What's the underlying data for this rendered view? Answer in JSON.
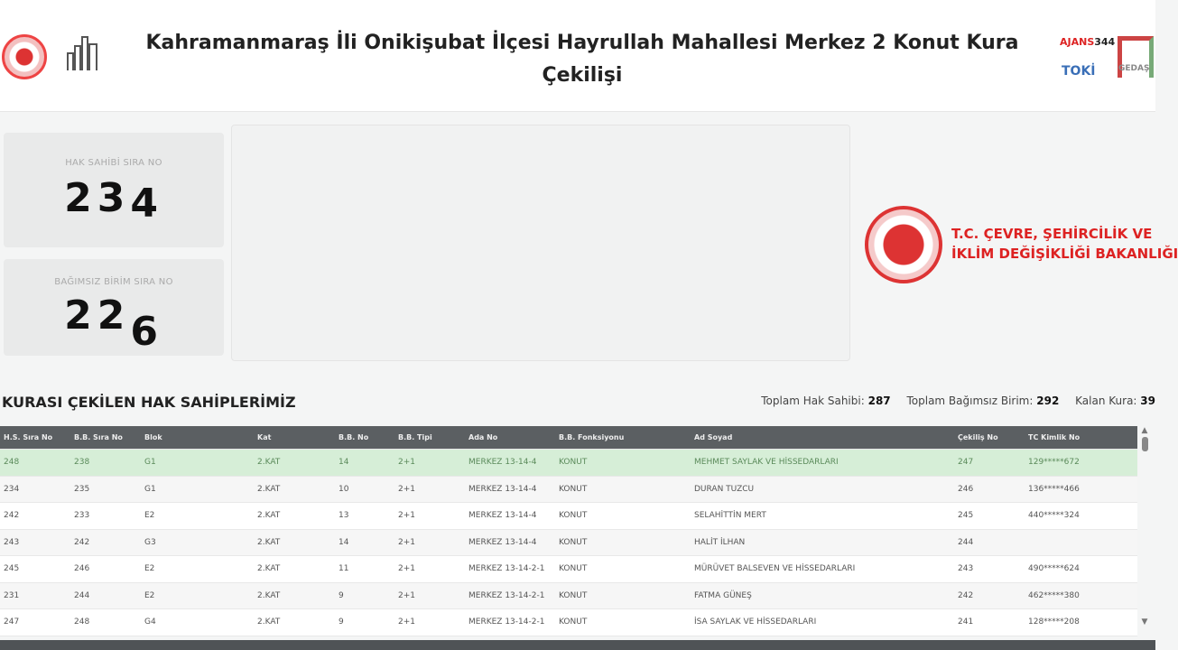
{
  "header": {
    "title": "Kahramanmaraş İli Onikişubat İlçesi Hayrullah Mahallesi Merkez 2 Konut Kura Çekilişi",
    "logos": {
      "ajans": "AJANS",
      "ajans_num": "344",
      "toki": "TOKİ",
      "gedas": "GEDAŞ"
    }
  },
  "counters": {
    "hak_sahibi": {
      "label": "HAK SAHİBİ SIRA NO",
      "digits": [
        "2",
        "3",
        "4"
      ]
    },
    "bagimsiz_birim": {
      "label": "BAĞIMSIZ BİRİM SIRA NO",
      "digits": [
        "2",
        "2",
        "6"
      ]
    }
  },
  "ministry": {
    "line1": "T.C. ÇEVRE, ŞEHİRCİLİK VE",
    "line2": "İKLİM DEĞİŞİKLİĞİ BAKANLIĞI"
  },
  "list": {
    "title": "KURASI ÇEKİLEN HAK SAHİPLERİMİZ",
    "stats": {
      "toplam_hak_sahibi_label": "Toplam Hak Sahibi:",
      "toplam_hak_sahibi": "287",
      "toplam_birim_label": "Toplam Bağımsız Birim:",
      "toplam_birim": "292",
      "kalan_kura_label": "Kalan Kura:",
      "kalan_kura": "39"
    }
  },
  "table": {
    "columns": [
      "H.S. Sıra No",
      "B.B. Sıra No",
      "Blok",
      "Kat",
      "B.B. No",
      "B.B. Tipi",
      "Ada No",
      "B.B. Fonksiyonu",
      "Ad Soyad",
      "Çekiliş No",
      "TC Kimlik No"
    ],
    "rows": [
      [
        "248",
        "238",
        "G1",
        "2.KAT",
        "14",
        "2+1",
        "MERKEZ 13-14-4",
        "KONUT",
        "MEHMET SAYLAK VE HİSSEDARLARI",
        "247",
        "129*****672"
      ],
      [
        "234",
        "235",
        "G1",
        "2.KAT",
        "10",
        "2+1",
        "MERKEZ 13-14-4",
        "KONUT",
        "DURAN TUZCU",
        "246",
        "136*****466"
      ],
      [
        "242",
        "233",
        "E2",
        "2.KAT",
        "13",
        "2+1",
        "MERKEZ 13-14-4",
        "KONUT",
        "SELAHİTTİN MERT",
        "245",
        "440*****324"
      ],
      [
        "243",
        "242",
        "G3",
        "2.KAT",
        "14",
        "2+1",
        "MERKEZ 13-14-4",
        "KONUT",
        "HALİT İLHAN",
        "244",
        ""
      ],
      [
        "245",
        "246",
        "E2",
        "2.KAT",
        "11",
        "2+1",
        "MERKEZ 13-14-2-1",
        "KONUT",
        "MÜRÜVET BALSEVEN VE HİSSEDARLARI",
        "243",
        "490*****624"
      ],
      [
        "231",
        "244",
        "E2",
        "2.KAT",
        "9",
        "2+1",
        "MERKEZ 13-14-2-1",
        "KONUT",
        "FATMA GÜNEŞ",
        "242",
        "462*****380"
      ],
      [
        "247",
        "248",
        "G4",
        "2.KAT",
        "9",
        "2+1",
        "MERKEZ 13-14-2-1",
        "KONUT",
        "İSA SAYLAK VE HİSSEDARLARI",
        "241",
        "128*****208"
      ]
    ],
    "selected_row": 0
  },
  "colors": {
    "header_bg": "#5b5f62",
    "selected_row": "#d6eed7",
    "brand_red": "#d22"
  }
}
